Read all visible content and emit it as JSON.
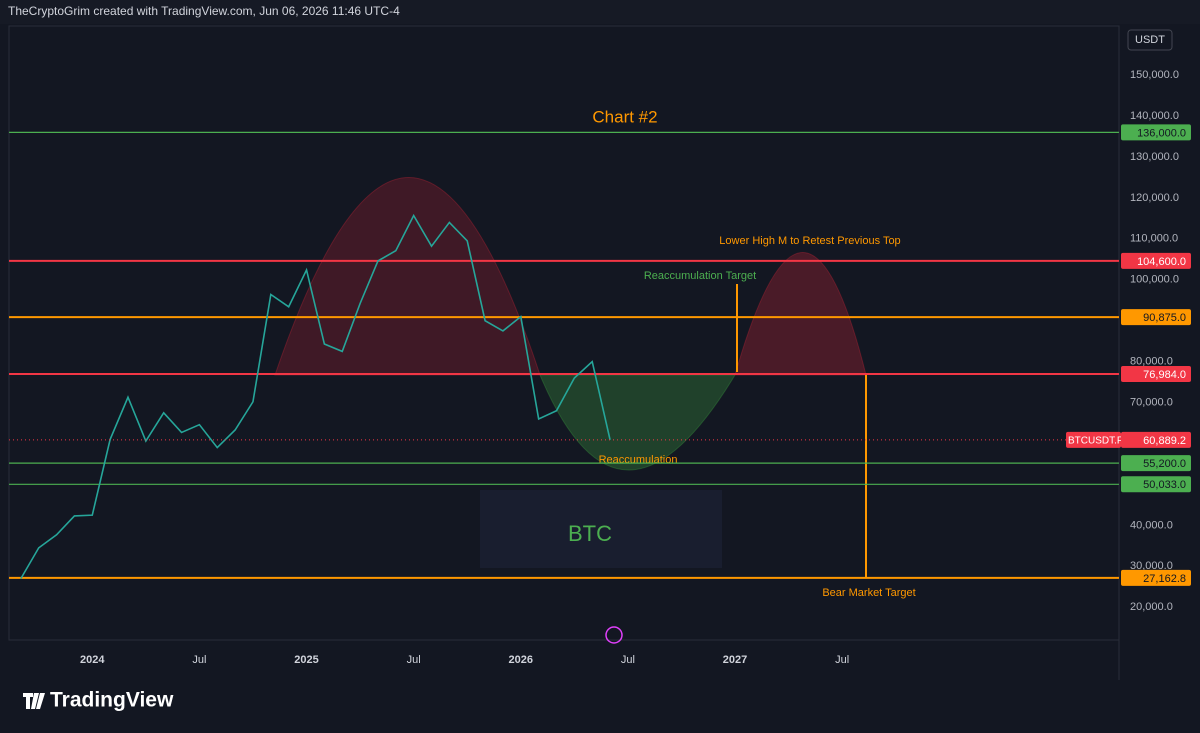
{
  "header": "TheCryptoGrim created with TradingView.com, Jun 06, 2026 11:46 UTC-4",
  "footer_logo": "TradingView",
  "chart_data": {
    "type": "line",
    "title": "Chart #2",
    "currency": "USDT",
    "watermark": "BTC",
    "x": [
      "2023-09",
      "2023-10",
      "2023-11",
      "2023-12",
      "2024-01",
      "2024-02",
      "2024-03",
      "2024-04",
      "2024-05",
      "2024-06",
      "2024-07",
      "2024-08",
      "2024-09",
      "2024-10",
      "2024-11",
      "2024-12",
      "2025-01",
      "2025-02",
      "2025-03",
      "2025-04",
      "2025-05",
      "2025-06",
      "2025-07",
      "2025-08",
      "2025-09",
      "2025-10",
      "2025-11",
      "2025-12",
      "2026-01",
      "2026-02",
      "2026-03",
      "2026-04",
      "2026-05",
      "2026-06"
    ],
    "series": [
      {
        "name": "BTCUSDT.P",
        "color": "#26a69a",
        "values": [
          27000,
          34500,
          37700,
          42300,
          42500,
          61000,
          71300,
          60600,
          67500,
          62700,
          64600,
          59000,
          63300,
          70200,
          96400,
          93400,
          102400,
          84300,
          82500,
          94200,
          104600,
          107100,
          115700,
          108200,
          114000,
          109500,
          90000,
          87500,
          91000,
          66000,
          68000,
          76000,
          80000,
          60889.2
        ]
      }
    ],
    "last_price": {
      "value": 60889.2,
      "label": "60,889.2",
      "color": "#f23645"
    },
    "levels": [
      {
        "value": 136000,
        "label": "136,000.0",
        "color": "#4caf50"
      },
      {
        "value": 104600,
        "label": "104,600.0",
        "color": "#f23645"
      },
      {
        "value": 90875,
        "label": "90,875.0",
        "color": "#ff9800"
      },
      {
        "value": 76984,
        "label": "76,984.0",
        "color": "#f23645"
      },
      {
        "value": 55200,
        "label": "55,200.0",
        "color": "#4caf50"
      },
      {
        "value": 50033,
        "label": "50,033.0",
        "color": "#4caf50"
      },
      {
        "value": 27162.8,
        "label": "27,162.8",
        "color": "#ff9800"
      }
    ],
    "annotations": [
      "Lower High M to Retest Previous Top",
      "Reaccumulation Target",
      "Reaccumulation",
      "Bear Market Target"
    ],
    "xlim": [
      "2023-08",
      "2028-10"
    ],
    "xticks": [
      {
        "value": "2024-01",
        "label": "2024"
      },
      {
        "value": "2024-07",
        "label": "Jul"
      },
      {
        "value": "2025-01",
        "label": "2025"
      },
      {
        "value": "2025-07",
        "label": "Jul"
      },
      {
        "value": "2026-01",
        "label": "2026"
      },
      {
        "value": "2026-07",
        "label": "Jul"
      },
      {
        "value": "2027-01",
        "label": "2027"
      },
      {
        "value": "2027-07",
        "label": "Jul"
      }
    ],
    "ylim": [
      12000,
      161500
    ],
    "yticks": [
      {
        "value": 20000,
        "label": "20,000.0"
      },
      {
        "value": 30000,
        "label": "30,000.0"
      },
      {
        "value": 40000,
        "label": "40,000.0"
      },
      {
        "value": 70000,
        "label": "70,000.0"
      },
      {
        "value": 80000,
        "label": "80,000.0"
      },
      {
        "value": 100000,
        "label": "100,000.0"
      },
      {
        "value": 110000,
        "label": "110,000.0"
      },
      {
        "value": 120000,
        "label": "120,000.0"
      },
      {
        "value": 130000,
        "label": "130,000.0"
      },
      {
        "value": 140000,
        "label": "140,000.0"
      },
      {
        "value": 150000,
        "label": "150,000.0"
      }
    ],
    "grid": false
  }
}
